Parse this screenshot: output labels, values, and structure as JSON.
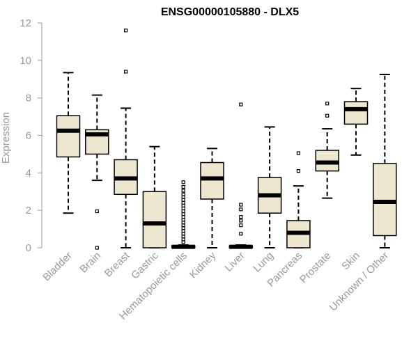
{
  "chart_data": {
    "type": "boxplot",
    "title": "ENSG00000105880 - DLX5",
    "xlabel": "",
    "ylabel": "Expression",
    "ylim": [
      0,
      12
    ],
    "yticks": [
      0,
      2,
      4,
      6,
      8,
      10,
      12
    ],
    "grid": false,
    "legend": "none",
    "colors": {
      "box_fill": "#ede7cf",
      "box_stroke": "#000000",
      "axis": "#999999"
    },
    "categories": [
      "Bladder",
      "Brain",
      "Breast",
      "Gastric",
      "Hematopoietic cells",
      "Kidney",
      "Liver",
      "Lung",
      "Pancreas",
      "Prostate",
      "Skin",
      "Unknown / Other"
    ],
    "boxes": [
      {
        "category": "Bladder",
        "whisker_low": 1.85,
        "q1": 4.85,
        "median": 6.25,
        "q3": 7.05,
        "whisker_high": 9.35,
        "outliers": []
      },
      {
        "category": "Brain",
        "whisker_low": 3.6,
        "q1": 5.0,
        "median": 6.05,
        "q3": 6.3,
        "whisker_high": 8.15,
        "outliers": [
          1.95,
          0.0
        ]
      },
      {
        "category": "Breast",
        "whisker_low": 0.0,
        "q1": 2.85,
        "median": 3.7,
        "q3": 4.7,
        "whisker_high": 7.45,
        "outliers": [
          9.4,
          11.6
        ]
      },
      {
        "category": "Gastric",
        "whisker_low": 0.0,
        "q1": 0.0,
        "median": 1.3,
        "q3": 3.0,
        "whisker_high": 5.4,
        "outliers": []
      },
      {
        "category": "Hematopoietic cells",
        "whisker_low": 0.0,
        "q1": 0.0,
        "median": 0.05,
        "q3": 0.1,
        "whisker_high": 0.15,
        "outliers": [
          0.3,
          0.45,
          0.6,
          0.75,
          0.9,
          1.05,
          1.2,
          1.35,
          1.5,
          1.65,
          1.8,
          1.95,
          2.1,
          2.25,
          2.4,
          2.55,
          2.7,
          2.85,
          3.05,
          3.25,
          3.5
        ]
      },
      {
        "category": "Kidney",
        "whisker_low": 0.0,
        "q1": 2.6,
        "median": 3.7,
        "q3": 4.55,
        "whisker_high": 5.3,
        "outliers": []
      },
      {
        "category": "Liver",
        "whisker_low": 0.0,
        "q1": 0.0,
        "median": 0.05,
        "q3": 0.1,
        "whisker_high": 0.15,
        "outliers": [
          0.75,
          1.2,
          1.45,
          1.65,
          2.05,
          2.3,
          7.65
        ]
      },
      {
        "category": "Lung",
        "whisker_low": 0.0,
        "q1": 1.85,
        "median": 2.8,
        "q3": 3.75,
        "whisker_high": 6.45,
        "outliers": []
      },
      {
        "category": "Pancreas",
        "whisker_low": 0.0,
        "q1": 0.0,
        "median": 0.8,
        "q3": 1.45,
        "whisker_high": 3.3,
        "outliers": [
          4.1,
          5.05
        ]
      },
      {
        "category": "Prostate",
        "whisker_low": 2.65,
        "q1": 4.1,
        "median": 4.55,
        "q3": 5.2,
        "whisker_high": 6.35,
        "outliers": [
          7.05,
          7.7
        ]
      },
      {
        "category": "Skin",
        "whisker_low": 4.95,
        "q1": 6.6,
        "median": 7.4,
        "q3": 7.8,
        "whisker_high": 8.5,
        "outliers": []
      },
      {
        "category": "Unknown / Other",
        "whisker_low": 0.0,
        "q1": 0.65,
        "median": 2.45,
        "q3": 4.5,
        "whisker_high": 9.25,
        "outliers": []
      }
    ]
  }
}
